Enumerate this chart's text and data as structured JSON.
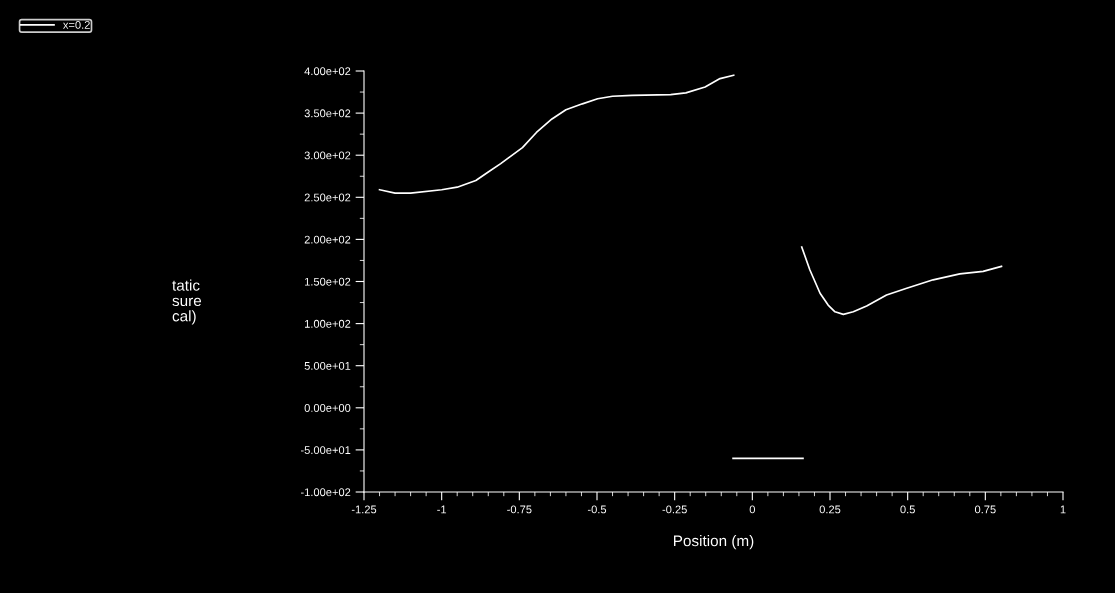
{
  "chart_data": {
    "type": "line",
    "xlabel": "Position (m)",
    "annotations": [
      "tatic\nsure\ncal)"
    ],
    "series": [
      {
        "name": "x=0.2",
        "color": "#ffffff",
        "x": [
          -1.2,
          -1.15,
          -1.1,
          -1.0,
          -0.95,
          -0.89,
          -0.85,
          -0.81,
          -0.74,
          -0.695,
          -0.645,
          -0.6,
          -0.547,
          -0.498,
          -0.45,
          -0.387,
          -0.263,
          -0.214,
          -0.152,
          -0.104,
          -0.06,
          0.05,
          0.159,
          0.185,
          0.218,
          0.244,
          0.266,
          0.293,
          0.325,
          0.368,
          0.432,
          0.497,
          0.582,
          0.668,
          0.743,
          0.802,
          0.5,
          -0.062,
          0.163
        ],
        "values": [
          259,
          255,
          255,
          259,
          262,
          270,
          280,
          290,
          309,
          327,
          343,
          354,
          361,
          367,
          370,
          371,
          372,
          374,
          381,
          391,
          395,
          null,
          191,
          164,
          136,
          122,
          114,
          111,
          114,
          121,
          134,
          142,
          152,
          159,
          162,
          168,
          null,
          -60,
          -60
        ]
      }
    ],
    "xlim": [
      -1.25,
      1
    ],
    "xticks": [
      -1.25,
      -1,
      -0.75,
      -0.5,
      -0.25,
      0,
      0.25,
      0.5,
      0.75,
      1
    ],
    "ylim": [
      -100,
      400
    ],
    "yticks": [
      {
        "value": -100,
        "label": "-1.00e+02"
      },
      {
        "value": -50,
        "label": "-5.00e+01"
      },
      {
        "value": 0,
        "label": "0.00e+00"
      },
      {
        "value": 50,
        "label": "5.00e+01"
      },
      {
        "value": 100,
        "label": "1.00e+02"
      },
      {
        "value": 150,
        "label": "1.50e+02"
      },
      {
        "value": 200,
        "label": "2.00e+02"
      },
      {
        "value": 250,
        "label": "2.50e+02"
      },
      {
        "value": 300,
        "label": "3.00e+02"
      },
      {
        "value": 350,
        "label": "3.50e+02"
      },
      {
        "value": 400,
        "label": "4.00e+02"
      }
    ],
    "grid": false,
    "legend": "top left",
    "marker": "none",
    "line_style": "solid"
  }
}
